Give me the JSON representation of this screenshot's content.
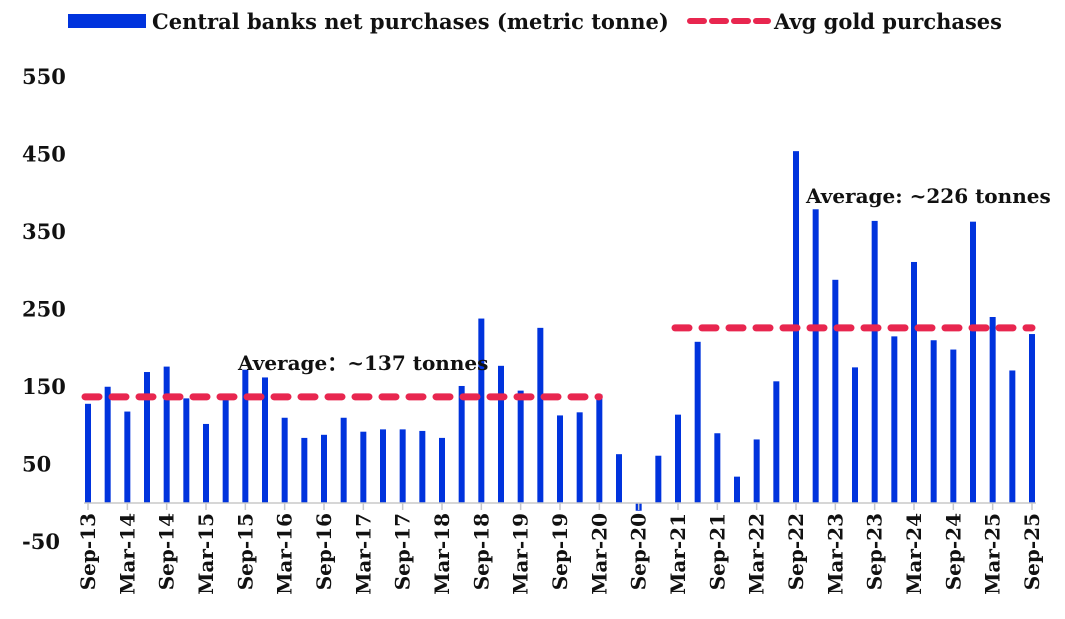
{
  "chart_data": {
    "type": "bar",
    "title": "",
    "xlabel": "",
    "ylabel": "",
    "ylim": [
      -50,
      550
    ],
    "yticks": [
      550,
      450,
      350,
      250,
      150,
      50,
      -50
    ],
    "grid": false,
    "legend_position": "top",
    "legend": [
      "Central banks net purchases (metric tonne)",
      "Avg gold purchases"
    ],
    "colors": {
      "bars": "#0033dd",
      "avg": "#e8264f"
    },
    "categories": [
      "Sep-13",
      "Dec-13",
      "Mar-14",
      "Jun-14",
      "Sep-14",
      "Dec-14",
      "Mar-15",
      "Jun-15",
      "Sep-15",
      "Dec-15",
      "Mar-16",
      "Jun-16",
      "Sep-16",
      "Dec-16",
      "Mar-17",
      "Jun-17",
      "Sep-17",
      "Dec-17",
      "Mar-18",
      "Jun-18",
      "Sep-18",
      "Dec-18",
      "Mar-19",
      "Jun-19",
      "Sep-19",
      "Dec-19",
      "Mar-20",
      "Jun-20",
      "Sep-20",
      "Dec-20",
      "Mar-21",
      "Jun-21",
      "Sep-21",
      "Dec-21",
      "Mar-22",
      "Jun-22",
      "Sep-22",
      "Dec-22",
      "Mar-23",
      "Jun-23",
      "Sep-23",
      "Dec-23",
      "Mar-24",
      "Jun-24",
      "Sep-24",
      "Dec-24",
      "Mar-25",
      "Jun-25",
      "Sep-25"
    ],
    "tick_labels": [
      "Sep-13",
      "Mar-14",
      "Sep-14",
      "Mar-15",
      "Sep-15",
      "Mar-16",
      "Sep-16",
      "Mar-17",
      "Sep-17",
      "Mar-18",
      "Sep-18",
      "Mar-19",
      "Sep-19",
      "Mar-20",
      "Sep-20",
      "Mar-21",
      "Sep-21",
      "Mar-22",
      "Sep-22",
      "Mar-23",
      "Sep-23",
      "Mar-24",
      "Sep-24",
      "Mar-25",
      "Sep-25"
    ],
    "series": [
      {
        "name": "Central banks net purchases (metric tonne)",
        "values": [
          128,
          150,
          118,
          169,
          176,
          135,
          102,
          141,
          172,
          162,
          110,
          84,
          88,
          110,
          92,
          95,
          95,
          93,
          84,
          151,
          238,
          177,
          145,
          226,
          113,
          117,
          140,
          63,
          -10,
          61,
          114,
          208,
          90,
          34,
          82,
          157,
          454,
          379,
          288,
          175,
          364,
          215,
          311,
          210,
          198,
          363,
          240,
          171,
          218
        ]
      }
    ],
    "averages": [
      {
        "name": "Avg gold purchases",
        "value": 137,
        "from": "Sep-13",
        "to": "Mar-20",
        "label": "Average：~137 tonnes"
      },
      {
        "name": "Avg gold purchases",
        "value": 226,
        "from": "Mar-21",
        "to": "Sep-25",
        "label": "Average: ~226 tonnes"
      }
    ]
  }
}
